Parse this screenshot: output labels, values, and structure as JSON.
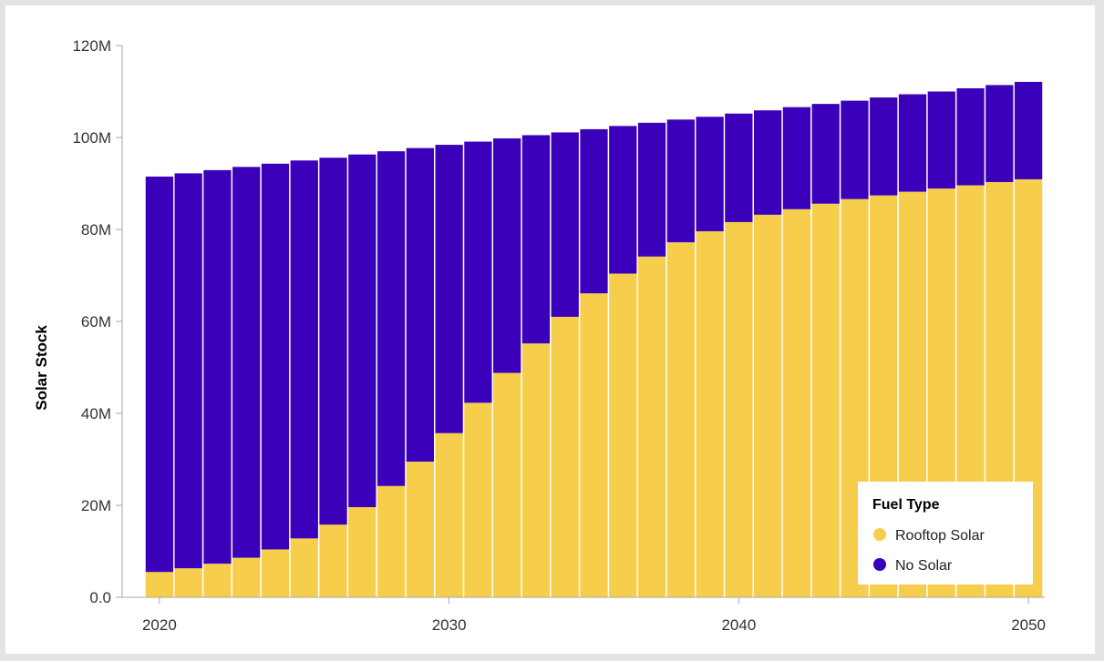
{
  "chart_data": {
    "type": "bar",
    "stacked": true,
    "ylabel": "Solar Stock",
    "xlabel": "",
    "ylim": [
      0,
      120000000
    ],
    "xlim": [
      2019.5,
      2050.5
    ],
    "y_ticks": [
      {
        "value": 0,
        "label": "0.0"
      },
      {
        "value": 20000000,
        "label": "20M"
      },
      {
        "value": 40000000,
        "label": "40M"
      },
      {
        "value": 60000000,
        "label": "60M"
      },
      {
        "value": 80000000,
        "label": "80M"
      },
      {
        "value": 100000000,
        "label": "100M"
      },
      {
        "value": 120000000,
        "label": "120M"
      }
    ],
    "x_ticks": [
      {
        "value": 2020,
        "label": "2020"
      },
      {
        "value": 2030,
        "label": "2030"
      },
      {
        "value": 2040,
        "label": "2040"
      },
      {
        "value": 2050,
        "label": "2050"
      }
    ],
    "x": [
      2020,
      2021,
      2022,
      2023,
      2024,
      2025,
      2026,
      2027,
      2028,
      2029,
      2030,
      2031,
      2032,
      2033,
      2034,
      2035,
      2036,
      2037,
      2038,
      2039,
      2040,
      2041,
      2042,
      2043,
      2044,
      2045,
      2046,
      2047,
      2048,
      2049,
      2050
    ],
    "series": [
      {
        "name": "Rooftop Solar",
        "color": "#f7ce4b",
        "values": [
          5500000,
          6300000,
          7300000,
          8600000,
          10400000,
          12800000,
          15800000,
          19600000,
          24200000,
          29500000,
          35700000,
          42300000,
          48800000,
          55200000,
          61000000,
          66100000,
          70400000,
          74100000,
          77200000,
          79600000,
          81600000,
          83200000,
          84400000,
          85600000,
          86600000,
          87400000,
          88200000,
          88900000,
          89600000,
          90300000,
          90900000
        ]
      },
      {
        "name": "No Solar",
        "color": "#3b00b9",
        "values": [
          86000000,
          85900000,
          85600000,
          85000000,
          83900000,
          82200000,
          79800000,
          76700000,
          72800000,
          68200000,
          62700000,
          56800000,
          51000000,
          45300000,
          40100000,
          35700000,
          32100000,
          29100000,
          26700000,
          24900000,
          23600000,
          22700000,
          22200000,
          21700000,
          21400000,
          21300000,
          21200000,
          21100000,
          21100000,
          21100000,
          21200000
        ]
      }
    ],
    "legend": {
      "title": "Fuel Type",
      "position": "bottom-right"
    },
    "grid": false
  }
}
